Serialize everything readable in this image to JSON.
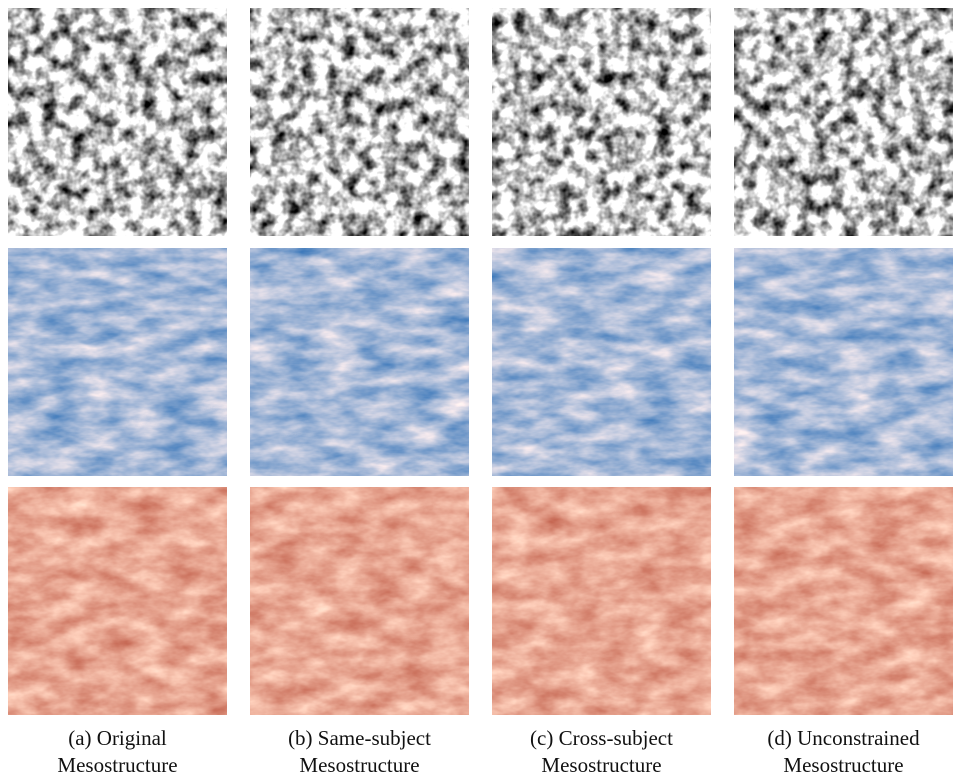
{
  "figure": {
    "panels": [
      {
        "label": "(a) Original",
        "sublabel": "Mesostructure"
      },
      {
        "label": "(b) Same-subject",
        "sublabel": "Mesostructure"
      },
      {
        "label": "(c) Cross-subject",
        "sublabel": "Mesostructure"
      },
      {
        "label": "(d) Unconstrained",
        "sublabel": "Mesostructure"
      }
    ]
  }
}
